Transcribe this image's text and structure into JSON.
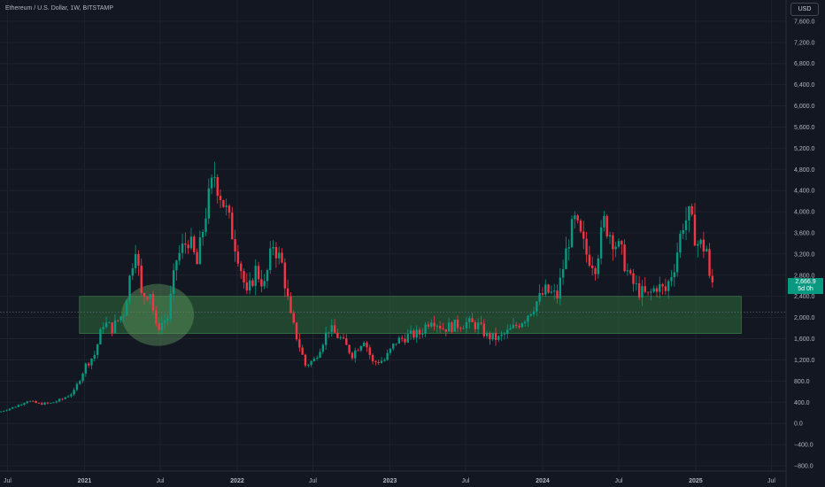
{
  "header": {
    "title": "Ethereum / U.S. Dollar, 1W, BITSTAMP",
    "currency": "USD",
    "last_price": "2,666.9",
    "countdown": "5d 0h"
  },
  "colors": {
    "background": "#131722",
    "up": "#089981",
    "down": "#f23645",
    "zone_fill": "#2f6b3a",
    "grid": "#1e222d",
    "text": "#b2b5be"
  },
  "chart_data": {
    "type": "candlestick",
    "yticks": [
      -800,
      -400,
      0,
      400,
      800,
      1200,
      1600,
      2000,
      2400,
      2800,
      3200,
      3600,
      4000,
      4400,
      4800,
      5200,
      5600,
      6000,
      6400,
      6800,
      7200,
      7600
    ],
    "ytick_labels": [
      "−800.0",
      "−400.0",
      "0.0",
      "400.0",
      "800.0",
      "1,200.0",
      "1,600.0",
      "2,000.0",
      "2,400.0",
      "2,800.0",
      "3,200.0",
      "3,600.0",
      "4,000.0",
      "4,400.0",
      "4,800.0",
      "5,200.0",
      "5,600.0",
      "6,000.0",
      "6,400.0",
      "6,800.0",
      "7,200.0",
      "7,600.0"
    ],
    "ylim": [
      -900,
      8000
    ],
    "xlim": [
      "2020-06-13",
      "2025-08-05"
    ],
    "xticks": [
      {
        "date": "2020-07-01",
        "label": "Jul"
      },
      {
        "date": "2021-01-01",
        "label": "2021"
      },
      {
        "date": "2021-07-01",
        "label": "Jul"
      },
      {
        "date": "2022-01-01",
        "label": "2022"
      },
      {
        "date": "2022-07-01",
        "label": "Jul"
      },
      {
        "date": "2023-01-01",
        "label": "2023"
      },
      {
        "date": "2023-07-01",
        "label": "Jul"
      },
      {
        "date": "2024-01-01",
        "label": "2024"
      },
      {
        "date": "2024-07-01",
        "label": "Jul"
      },
      {
        "date": "2025-01-01",
        "label": "2025"
      },
      {
        "date": "2025-07-01",
        "label": "Jul"
      }
    ],
    "zone": {
      "x_start": "2020-12-20",
      "x_end": "2025-04-20",
      "y_low": 1700,
      "y_high": 2400
    },
    "circle": {
      "date": "2021-06-25",
      "price": 2050
    },
    "dotted_line_price": 2100,
    "weekly_close_anchors": [
      [
        "2020-06-15",
        225
      ],
      [
        "2020-07-20",
        320
      ],
      [
        "2020-08-17",
        430
      ],
      [
        "2020-09-14",
        370
      ],
      [
        "2020-10-12",
        380
      ],
      [
        "2020-11-09",
        460
      ],
      [
        "2020-12-07",
        600
      ],
      [
        "2021-01-04",
        1100
      ],
      [
        "2021-01-25",
        1300
      ],
      [
        "2021-02-15",
        1900
      ],
      [
        "2021-03-08",
        1800
      ],
      [
        "2021-04-05",
        2100
      ],
      [
        "2021-05-03",
        3400
      ],
      [
        "2021-05-17",
        2400
      ],
      [
        "2021-06-07",
        2500
      ],
      [
        "2021-06-21",
        1800
      ],
      [
        "2021-07-19",
        2000
      ],
      [
        "2021-08-09",
        3100
      ],
      [
        "2021-09-06",
        3500
      ],
      [
        "2021-09-27",
        3000
      ],
      [
        "2021-10-18",
        4000
      ],
      [
        "2021-11-08",
        4700
      ],
      [
        "2021-12-06",
        4000
      ],
      [
        "2022-01-03",
        3200
      ],
      [
        "2022-01-24",
        2400
      ],
      [
        "2022-02-14",
        2900
      ],
      [
        "2022-03-07",
        2600
      ],
      [
        "2022-03-28",
        3400
      ],
      [
        "2022-04-18",
        3000
      ],
      [
        "2022-05-09",
        2000
      ],
      [
        "2022-06-13",
        1100
      ],
      [
        "2022-07-04",
        1200
      ],
      [
        "2022-08-08",
        1800
      ],
      [
        "2022-09-05",
        1600
      ],
      [
        "2022-10-03",
        1300
      ],
      [
        "2022-10-31",
        1600
      ],
      [
        "2022-11-21",
        1150
      ],
      [
        "2022-12-19",
        1200
      ],
      [
        "2023-01-16",
        1550
      ],
      [
        "2023-02-13",
        1650
      ],
      [
        "2023-03-13",
        1700
      ],
      [
        "2023-04-10",
        2000
      ],
      [
        "2023-05-08",
        1800
      ],
      [
        "2023-06-05",
        1850
      ],
      [
        "2023-07-03",
        1900
      ],
      [
        "2023-07-31",
        1850
      ],
      [
        "2023-08-21",
        1650
      ],
      [
        "2023-09-18",
        1600
      ],
      [
        "2023-10-23",
        1800
      ],
      [
        "2023-11-20",
        2000
      ],
      [
        "2023-12-18",
        2300
      ],
      [
        "2024-01-08",
        2500
      ],
      [
        "2024-02-05",
        2400
      ],
      [
        "2024-03-04",
        3500
      ],
      [
        "2024-03-18",
        3800
      ],
      [
        "2024-04-15",
        3200
      ],
      [
        "2024-05-06",
        3000
      ],
      [
        "2024-05-27",
        3800
      ],
      [
        "2024-06-17",
        3500
      ],
      [
        "2024-07-08",
        3200
      ],
      [
        "2024-07-29",
        2700
      ],
      [
        "2024-08-19",
        2500
      ],
      [
        "2024-09-09",
        2400
      ],
      [
        "2024-09-30",
        2600
      ],
      [
        "2024-10-21",
        2500
      ],
      [
        "2024-11-11",
        3000
      ],
      [
        "2024-12-02",
        3800
      ],
      [
        "2024-12-16",
        3900
      ],
      [
        "2025-01-06",
        3400
      ],
      [
        "2025-01-27",
        3300
      ],
      [
        "2025-02-03",
        2700
      ],
      [
        "2025-02-10",
        2666
      ]
    ]
  }
}
